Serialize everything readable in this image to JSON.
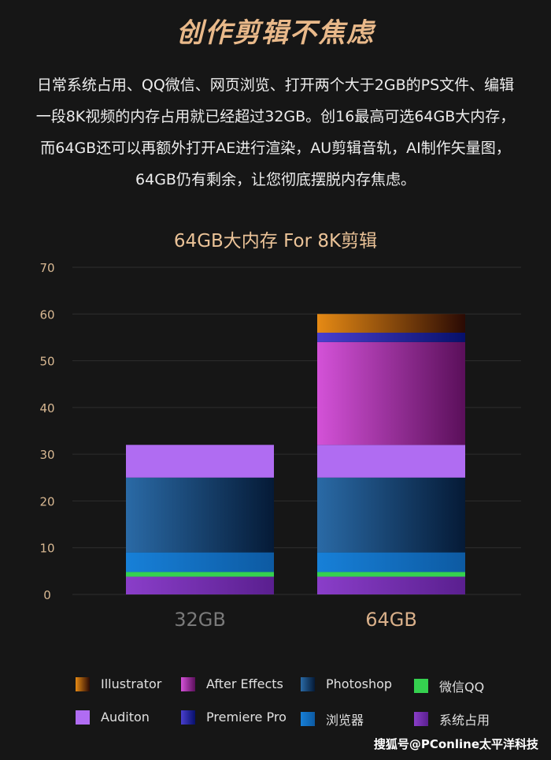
{
  "header": {
    "title": "创作剪辑不焦虑"
  },
  "description": {
    "lines": [
      "日常系统占用、QQ微信、网页浏览、打开两个大于2GB的PS文件、编辑",
      "一段8K视频的内存占用就已经超过32GB。创16最高可选64GB大内存，",
      "而64GB还可以再额外打开AE进行渲染，AU剪辑音轨，AI制作矢量图，",
      "64GB仍有剩余，让您彻底摆脱内存焦虑。"
    ]
  },
  "chart_data": {
    "type": "bar",
    "stacked": true,
    "title": "64GB大内存 For 8K剪辑",
    "categories": [
      "32GB",
      "64GB"
    ],
    "ylim": [
      0,
      70
    ],
    "yticks": [
      0,
      10,
      20,
      30,
      40,
      50,
      60,
      70
    ],
    "grid": true,
    "legend_position": "bottom",
    "series": [
      {
        "name": "系统占用",
        "values": [
          3.8,
          3.8
        ],
        "color": "#8a3ec9",
        "color_end": "#5a1f8f"
      },
      {
        "name": "微信QQ",
        "values": [
          1.0,
          1.0
        ],
        "color": "#35d14f",
        "color_end": "#35d14f"
      },
      {
        "name": "浏览器",
        "values": [
          4.2,
          4.2
        ],
        "color": "#1780d8",
        "color_end": "#0d5aa2"
      },
      {
        "name": "Photoshop",
        "values": [
          16.0,
          16.0
        ],
        "color": "#2a6aa6",
        "color_end": "#051a36"
      },
      {
        "name": "Auditon",
        "values": [
          7.0,
          7.0
        ],
        "color": "#b06cf2",
        "color_end": "#b06cf2"
      },
      {
        "name": "After Effects",
        "values": [
          0,
          22.0
        ],
        "color": "#d452d8",
        "color_end": "#5a0f5a"
      },
      {
        "name": "Premiere Pro",
        "values": [
          0,
          2.0
        ],
        "color": "#4a3fcf",
        "color_end": "#06106a"
      },
      {
        "name": "Illustrator",
        "values": [
          0,
          4.0
        ],
        "color": "#e68a14",
        "color_end": "#2a0a04"
      }
    ],
    "legend_order": [
      "Illustrator",
      "After Effects",
      "Photoshop",
      "微信QQ",
      "Auditon",
      "Premiere Pro",
      "浏览器",
      "系统占用"
    ],
    "category_label_colors": [
      "#7a7a7a",
      "#d9b08a"
    ],
    "tick_label_color": "#d8b892"
  },
  "footer": {
    "watermark": "搜狐号@PConline太平洋科技"
  }
}
